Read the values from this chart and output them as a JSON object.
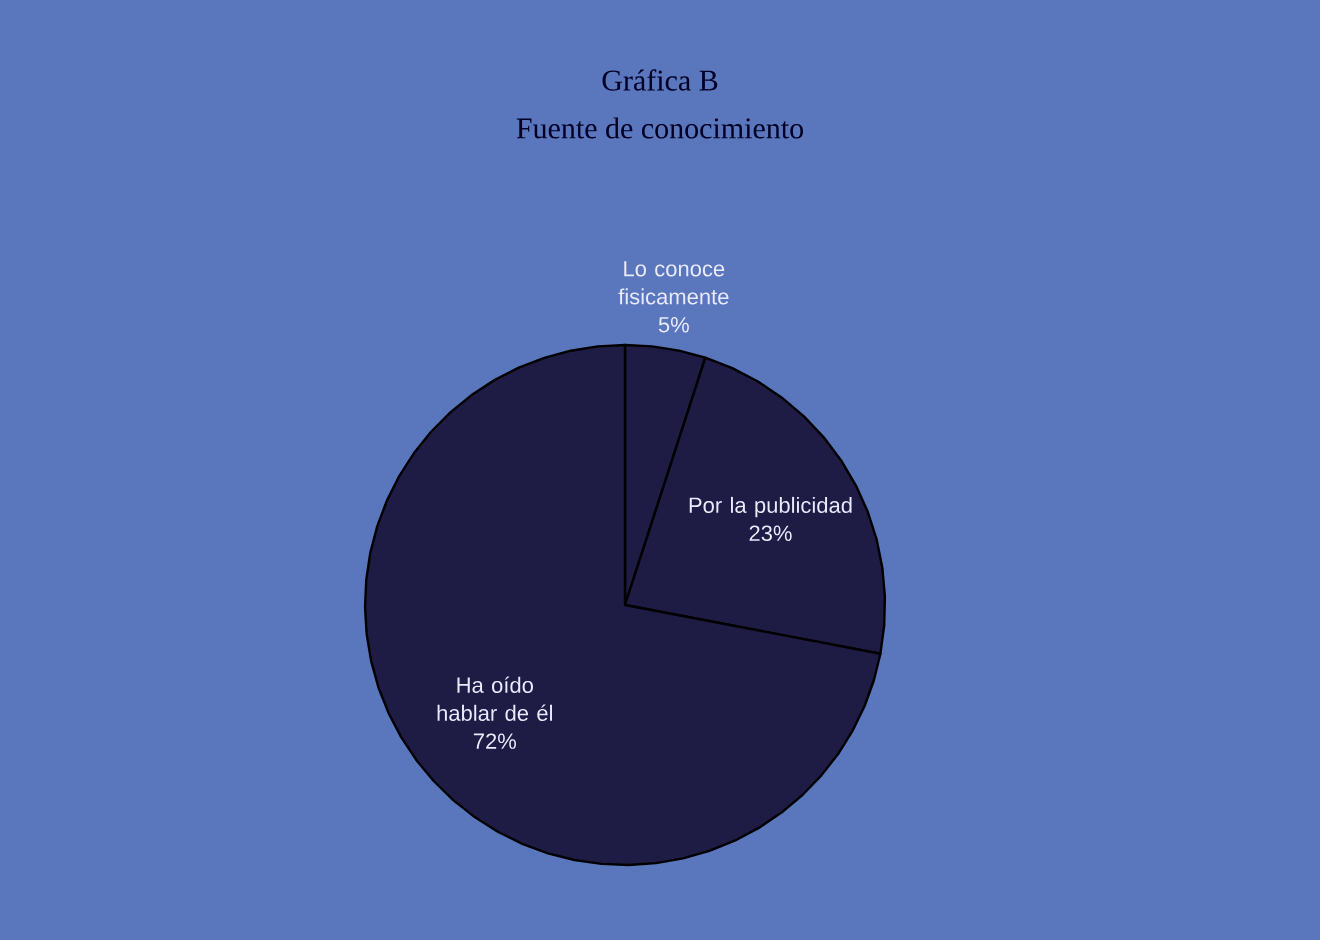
{
  "chart_data": {
    "type": "pie",
    "title": "Gráfica B",
    "subtitle": "Fuente de conocimiento",
    "categories": [
      "Lo conoce fisicamente",
      "Por la publicidad",
      "Ha oído hablar de él"
    ],
    "values": [
      5,
      23,
      72
    ],
    "value_labels": [
      "5%",
      "23%",
      "72%"
    ],
    "colors": [
      "#1e1b45",
      "#1e1b45",
      "#1e1b45"
    ],
    "legend": false
  }
}
